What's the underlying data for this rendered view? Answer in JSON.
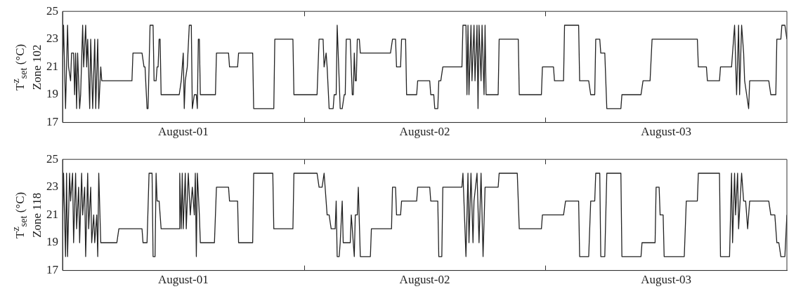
{
  "chart_data": [
    {
      "type": "line",
      "ylabel": "T$^{z}$$_{set}$ (°C)\nZone 102",
      "xlim": [
        "--08-01T00:00",
        "--08-04T00:00"
      ],
      "xticks": [
        {
          "value": "--08-01T12:00",
          "label": "August-01"
        },
        {
          "value": "--08-02T00:00",
          "label": null
        },
        {
          "value": "--08-02T12:00",
          "label": "August-02"
        },
        {
          "value": "--08-03T00:00",
          "label": null
        },
        {
          "value": "--08-03T12:00",
          "label": "August-03"
        }
      ],
      "ylim": [
        17,
        25
      ],
      "yticks": [
        17,
        19,
        21,
        23,
        25
      ],
      "line_style": "solid",
      "marker": "none",
      "series": [
        {
          "color": "#222222",
          "x": [
            "--08-01T00:00",
            "--08-01T00:06",
            "--08-01T00:18",
            "--08-01T00:30",
            "--08-01T00:36",
            "--08-01T00:48",
            "--08-01T00:54",
            "--08-01T01:06",
            "--08-01T01:12",
            "--08-01T01:18",
            "--08-01T01:24",
            "--08-01T01:30",
            "--08-01T01:42",
            "--08-01T01:48",
            "--08-01T02:00",
            "--08-01T02:06",
            "--08-01T02:18",
            "--08-01T02:24",
            "--08-01T02:30",
            "--08-01T02:42",
            "--08-01T02:48",
            "--08-01T03:00",
            "--08-01T03:12",
            "--08-01T03:18",
            "--08-01T03:30",
            "--08-01T03:36",
            "--08-01T03:48",
            "--08-01T03:54",
            "--08-01T06:54",
            "--08-01T07:00",
            "--08-01T07:54",
            "--08-01T08:06",
            "--08-01T08:12",
            "--08-01T08:24",
            "--08-01T08:30",
            "--08-01T08:42",
            "--08-01T09:00",
            "--08-01T09:06",
            "--08-01T09:18",
            "--08-01T09:24",
            "--08-01T09:30",
            "--08-01T09:36",
            "--08-01T09:42",
            "--08-01T09:48",
            "--08-01T11:36",
            "--08-01T11:48",
            "--08-01T12:00",
            "--08-01T12:06",
            "--08-01T12:12",
            "--08-01T12:24",
            "--08-01T12:36",
            "--08-01T12:48",
            "--08-01T12:54",
            "--08-01T13:06",
            "--08-01T13:18",
            "--08-01T13:24",
            "--08-01T13:30",
            "--08-01T13:36",
            "--08-01T13:42",
            "--08-01T15:12",
            "--08-01T15:18",
            "--08-01T16:30",
            "--08-01T16:36",
            "--08-01T17:24",
            "--08-01T17:30",
            "--08-01T18:54",
            "--08-01T19:00",
            "--08-01T21:00",
            "--08-01T21:06",
            "--08-01T22:54",
            "--08-01T23:00",
            "--08-02T01:18",
            "--08-02T01:30",
            "--08-02T01:54",
            "--08-02T02:00",
            "--08-02T02:12",
            "--08-02T02:18",
            "--08-02T02:30",
            "--08-02T02:54",
            "--08-02T03:00",
            "--08-02T03:12",
            "--08-02T03:18",
            "--08-02T03:30",
            "--08-02T03:36",
            "--08-02T03:48",
            "--08-02T04:00",
            "--08-02T04:06",
            "--08-02T04:12",
            "--08-02T04:36",
            "--08-02T04:48",
            "--08-02T04:54",
            "--08-02T05:00",
            "--08-02T05:06",
            "--08-02T05:12",
            "--08-02T05:18",
            "--08-02T05:30",
            "--08-02T05:36",
            "--08-02T08:12",
            "--08-02T08:36",
            "--08-02T08:48",
            "--08-02T09:06",
            "--08-02T09:12",
            "--08-02T09:36",
            "--08-02T09:42",
            "--08-02T10:06",
            "--08-02T10:12",
            "--08-02T11:12",
            "--08-02T11:18",
            "--08-02T12:30",
            "--08-02T12:36",
            "--08-02T12:54",
            "--08-02T13:00",
            "--08-02T13:18",
            "--08-02T13:24",
            "--08-02T13:36",
            "--08-02T13:48",
            "--08-02T15:42",
            "--08-02T15:48",
            "--08-02T16:06",
            "--08-02T16:12",
            "--08-02T16:18",
            "--08-02T16:24",
            "--08-02T16:36",
            "--08-02T16:42",
            "--08-02T16:54",
            "--08-02T17:00",
            "--08-02T17:12",
            "--08-02T17:18",
            "--08-02T17:24",
            "--08-02T17:36",
            "--08-02T17:42",
            "--08-02T17:54",
            "--08-02T18:00",
            "--08-02T18:06",
            "--08-02T19:18",
            "--08-02T19:24",
            "--08-02T21:18",
            "--08-02T21:24",
            "--08-02T23:36",
            "--08-02T23:42",
            "--08-03T00:48",
            "--08-03T00:54",
            "--08-03T01:48",
            "--08-03T01:54",
            "--08-03T03:18",
            "--08-03T03:24",
            "--08-03T04:18",
            "--08-03T04:30",
            "--08-03T04:54",
            "--08-03T05:00",
            "--08-03T05:24",
            "--08-03T05:30",
            "--08-03T05:54",
            "--08-03T06:06",
            "--08-03T07:30",
            "--08-03T07:36",
            "--08-03T09:30",
            "--08-03T09:42",
            "--08-03T10:24",
            "--08-03T10:36",
            "--08-03T15:06",
            "--08-03T15:12",
            "--08-03T16:00",
            "--08-03T16:06",
            "--08-03T17:18",
            "--08-03T17:24",
            "--08-03T18:30",
            "--08-03T18:42",
            "--08-03T18:48",
            "--08-03T19:00",
            "--08-03T19:12",
            "--08-03T19:18",
            "--08-03T19:30",
            "--08-03T19:42",
            "--08-03T19:48",
            "--08-03T20:00",
            "--08-03T20:12",
            "--08-03T20:18",
            "--08-03T22:12",
            "--08-03T22:24",
            "--08-03T22:54",
            "--08-03T23:00",
            "--08-03T23:24",
            "--08-03T23:30",
            "--08-03T23:48",
            "--08-04T00:00"
          ],
          "values": [
            21,
            24,
            18,
            24,
            21,
            20,
            22,
            22,
            19,
            22,
            18,
            22,
            18,
            19,
            24,
            21,
            24,
            21,
            23,
            18,
            23,
            18,
            23,
            18,
            23,
            18,
            21,
            20,
            20,
            22,
            22,
            21,
            21,
            18,
            18,
            24,
            24,
            20,
            20,
            21,
            21,
            23,
            23,
            19,
            19,
            20,
            22,
            18,
            20,
            21,
            24,
            24,
            18,
            19,
            19,
            18,
            23,
            23,
            19,
            19,
            22,
            22,
            21,
            21,
            22,
            22,
            18,
            18,
            23,
            23,
            19,
            19,
            23,
            23,
            21,
            22,
            21,
            18,
            18,
            19,
            19,
            24,
            20,
            18,
            18,
            19,
            19,
            23,
            23,
            19,
            19,
            22,
            20,
            20,
            23,
            23,
            22,
            22,
            22,
            23,
            23,
            21,
            21,
            23,
            23,
            19,
            19,
            20,
            20,
            19,
            19,
            18,
            18,
            20,
            20,
            21,
            21,
            24,
            24,
            19,
            24,
            19,
            24,
            20,
            24,
            20,
            24,
            18,
            24,
            20,
            24,
            19,
            24,
            19,
            19,
            23,
            23,
            19,
            19,
            21,
            21,
            20,
            20,
            24,
            24,
            20,
            20,
            19,
            19,
            23,
            23,
            22,
            22,
            18,
            18,
            19,
            19,
            20,
            20,
            23,
            23,
            21,
            21,
            20,
            20,
            21,
            21,
            23,
            24,
            19,
            24,
            19,
            24,
            22,
            20,
            19,
            18,
            20,
            20,
            19,
            19,
            23,
            23,
            24,
            24,
            23
          ]
        }
      ]
    },
    {
      "type": "line",
      "ylabel": "T$^{z}$$_{set}$ (°C)\nZone 118",
      "xlim": [
        "--08-01T00:00",
        "--08-04T00:00"
      ],
      "xticks": [
        {
          "value": "--08-01T12:00",
          "label": "August-01"
        },
        {
          "value": "--08-02T00:00",
          "label": null
        },
        {
          "value": "--08-02T12:00",
          "label": "August-02"
        },
        {
          "value": "--08-03T00:00",
          "label": null
        },
        {
          "value": "--08-03T12:00",
          "label": "August-03"
        }
      ],
      "ylim": [
        17,
        25
      ],
      "yticks": [
        17,
        19,
        21,
        23,
        25
      ],
      "line_style": "solid",
      "marker": "none",
      "series": [
        {
          "color": "#222222",
          "x": [
            "--08-01T00:00",
            "--08-01T00:06",
            "--08-01T00:18",
            "--08-01T00:24",
            "--08-01T00:30",
            "--08-01T00:42",
            "--08-01T00:48",
            "--08-01T01:00",
            "--08-01T01:06",
            "--08-01T01:18",
            "--08-01T01:24",
            "--08-01T01:36",
            "--08-01T01:42",
            "--08-01T01:54",
            "--08-01T02:00",
            "--08-01T02:12",
            "--08-01T02:18",
            "--08-01T02:30",
            "--08-01T02:36",
            "--08-01T02:48",
            "--08-01T02:54",
            "--08-01T03:06",
            "--08-01T03:12",
            "--08-01T03:24",
            "--08-01T03:30",
            "--08-01T03:36",
            "--08-01T03:48",
            "--08-01T05:24",
            "--08-01T05:36",
            "--08-01T07:54",
            "--08-01T08:00",
            "--08-01T08:24",
            "--08-01T08:36",
            "--08-01T08:54",
            "--08-01T09:00",
            "--08-01T09:12",
            "--08-01T09:18",
            "--08-01T09:24",
            "--08-01T09:36",
            "--08-01T09:48",
            "--08-01T11:36",
            "--08-01T11:39",
            "--08-01T11:48",
            "--08-01T11:54",
            "--08-01T12:00",
            "--08-01T12:12",
            "--08-01T12:18",
            "--08-01T12:30",
            "--08-01T12:42",
            "--08-01T12:54",
            "--08-01T13:06",
            "--08-01T13:12",
            "--08-01T13:18",
            "--08-01T13:24",
            "--08-01T13:36",
            "--08-01T13:42",
            "--08-01T15:06",
            "--08-01T15:18",
            "--08-01T16:30",
            "--08-01T16:36",
            "--08-01T17:24",
            "--08-01T17:30",
            "--08-01T18:54",
            "--08-01T19:00",
            "--08-01T20:54",
            "--08-01T21:00",
            "--08-01T22:54",
            "--08-01T23:00",
            "--08-02T01:18",
            "--08-02T01:30",
            "--08-02T01:48",
            "--08-02T02:00",
            "--08-02T02:06",
            "--08-02T02:18",
            "--08-02T02:30",
            "--08-02T02:42",
            "--08-02T03:06",
            "--08-02T03:12",
            "--08-02T03:18",
            "--08-02T03:30",
            "--08-02T03:36",
            "--08-02T03:48",
            "--08-02T03:54",
            "--08-02T04:36",
            "--08-02T04:42",
            "--08-02T05:00",
            "--08-02T05:06",
            "--08-02T05:18",
            "--08-02T05:24",
            "--08-02T05:36",
            "--08-02T06:36",
            "--08-02T06:42",
            "--08-02T08:12",
            "--08-02T08:42",
            "--08-02T08:48",
            "--08-02T09:06",
            "--08-02T09:12",
            "--08-02T09:36",
            "--08-02T09:42",
            "--08-02T11:12",
            "--08-02T11:18",
            "--08-02T12:30",
            "--08-02T12:36",
            "--08-02T13:18",
            "--08-02T13:24",
            "--08-02T13:42",
            "--08-02T13:48",
            "--08-02T15:42",
            "--08-02T15:48",
            "--08-02T16:06",
            "--08-02T16:18",
            "--08-02T16:24",
            "--08-02T16:36",
            "--08-02T16:48",
            "--08-02T16:54",
            "--08-02T17:12",
            "--08-02T17:24",
            "--08-02T17:36",
            "--08-02T17:48",
            "--08-02T18:00",
            "--08-02T19:18",
            "--08-02T19:24",
            "--08-02T21:12",
            "--08-02T21:24",
            "--08-02T23:36",
            "--08-02T23:42",
            "--08-03T01:48",
            "--08-03T02:00",
            "--08-03T03:18",
            "--08-03T03:24",
            "--08-03T04:18",
            "--08-03T04:30",
            "--08-03T04:54",
            "--08-03T05:00",
            "--08-03T05:24",
            "--08-03T05:30",
            "--08-03T05:54",
            "--08-03T06:06",
            "--08-03T07:30",
            "--08-03T07:36",
            "--08-03T09:30",
            "--08-03T09:36",
            "--08-03T10:54",
            "--08-03T11:00",
            "--08-03T11:18",
            "--08-03T11:24",
            "--08-03T11:42",
            "--08-03T11:48",
            "--08-03T13:48",
            "--08-03T14:00",
            "--08-03T15:06",
            "--08-03T15:12",
            "--08-03T17:18",
            "--08-03T17:24",
            "--08-03T18:18",
            "--08-03T18:30",
            "--08-03T18:36",
            "--08-03T18:48",
            "--08-03T18:54",
            "--08-03T19:06",
            "--08-03T19:12",
            "--08-03T19:30",
            "--08-03T19:42",
            "--08-03T19:54",
            "--08-03T20:06",
            "--08-03T20:18",
            "--08-03T22:12",
            "--08-03T22:24",
            "--08-03T22:48",
            "--08-03T23:00",
            "--08-03T23:12",
            "--08-03T23:24",
            "--08-03T23:48",
            "--08-04T00:00"
          ],
          "values": [
            20,
            24,
            18,
            24,
            18,
            24,
            22,
            24,
            19,
            24,
            20,
            23,
            19,
            24,
            21,
            23,
            18,
            24,
            20,
            23,
            19,
            21,
            19,
            21,
            18,
            24,
            19,
            19,
            20,
            20,
            19,
            19,
            24,
            24,
            18,
            18,
            24,
            22,
            22,
            20,
            20,
            24,
            20,
            24,
            20,
            24,
            20,
            24,
            21,
            23,
            21,
            24,
            18,
            24,
            21,
            19,
            19,
            23,
            23,
            22,
            22,
            19,
            19,
            24,
            24,
            20,
            20,
            24,
            24,
            23,
            23,
            24,
            23,
            21,
            21,
            20,
            20,
            22,
            18,
            18,
            19,
            22,
            19,
            19,
            21,
            18,
            21,
            21,
            23,
            18,
            18,
            20,
            20,
            20,
            23,
            23,
            21,
            21,
            22,
            22,
            23,
            23,
            22,
            22,
            18,
            18,
            23,
            23,
            24,
            18,
            24,
            19,
            24,
            19,
            22,
            24,
            19,
            24,
            18,
            23,
            23,
            24,
            24,
            20,
            20,
            21,
            21,
            22,
            22,
            18,
            18,
            22,
            22,
            24,
            24,
            18,
            18,
            24,
            24,
            18,
            18,
            19,
            19,
            23,
            23,
            21,
            21,
            18,
            18,
            22,
            22,
            24,
            24,
            18,
            18,
            24,
            19,
            24,
            21,
            24,
            20,
            24,
            22,
            22,
            20,
            22,
            22,
            21,
            21,
            19,
            19,
            18,
            18,
            21
          ]
        }
      ]
    }
  ]
}
